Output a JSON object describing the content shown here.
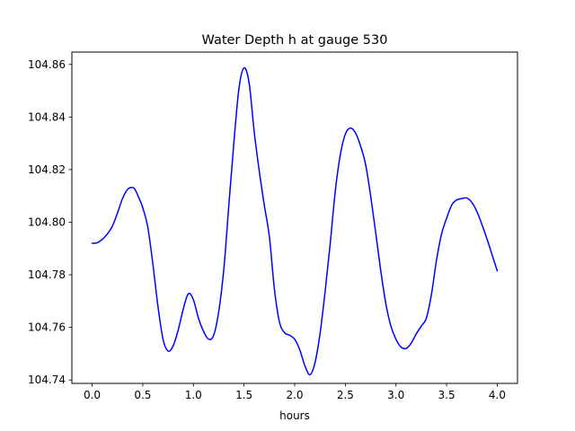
{
  "chart_data": {
    "type": "line",
    "title": "Water Depth h at gauge 530",
    "xlabel": "hours",
    "ylabel": "",
    "xlim": [
      -0.2,
      4.2
    ],
    "ylim": [
      104.7387,
      104.8647
    ],
    "x_ticks": [
      0.0,
      0.5,
      1.0,
      1.5,
      2.0,
      2.5,
      3.0,
      3.5,
      4.0
    ],
    "x_tick_labels": [
      "0.0",
      "0.5",
      "1.0",
      "1.5",
      "2.0",
      "2.5",
      "3.0",
      "3.5",
      "4.0"
    ],
    "y_ticks": [
      104.74,
      104.76,
      104.78,
      104.8,
      104.82,
      104.84,
      104.86
    ],
    "y_tick_labels": [
      "104.74",
      "104.76",
      "104.78",
      "104.80",
      "104.82",
      "104.84",
      "104.86"
    ],
    "grid": false,
    "series": [
      {
        "name": "",
        "color": "#0000ff",
        "x": [
          0.0,
          0.05,
          0.1,
          0.15,
          0.2,
          0.25,
          0.3,
          0.35,
          0.4,
          0.43,
          0.47,
          0.5,
          0.55,
          0.6,
          0.65,
          0.7,
          0.75,
          0.8,
          0.85,
          0.9,
          0.95,
          1.0,
          1.05,
          1.1,
          1.15,
          1.2,
          1.25,
          1.3,
          1.35,
          1.4,
          1.45,
          1.5,
          1.55,
          1.6,
          1.65,
          1.7,
          1.75,
          1.8,
          1.85,
          1.9,
          1.95,
          2.0,
          2.05,
          2.1,
          2.15,
          2.2,
          2.25,
          2.3,
          2.35,
          2.4,
          2.45,
          2.5,
          2.55,
          2.6,
          2.65,
          2.7,
          2.75,
          2.8,
          2.85,
          2.9,
          2.95,
          3.0,
          3.05,
          3.1,
          3.15,
          3.2,
          3.25,
          3.3,
          3.35,
          3.4,
          3.45,
          3.5,
          3.55,
          3.6,
          3.65,
          3.7,
          3.75,
          3.8,
          3.85,
          3.9,
          3.95,
          4.0
        ],
        "y": [
          104.792,
          104.7922,
          104.7935,
          104.7955,
          104.7985,
          104.8035,
          104.809,
          104.8125,
          104.8132,
          104.812,
          104.8085,
          104.8055,
          104.798,
          104.784,
          104.768,
          104.7555,
          104.751,
          104.753,
          104.759,
          104.767,
          104.7728,
          104.7705,
          104.7635,
          104.7585,
          104.7555,
          104.757,
          104.766,
          104.782,
          104.8065,
          104.8305,
          104.851,
          104.8587,
          104.853,
          104.8345,
          104.8195,
          104.8065,
          104.7945,
          104.7745,
          104.762,
          104.758,
          104.757,
          104.7555,
          104.7515,
          104.7455,
          104.742,
          104.7465,
          104.7575,
          104.7735,
          104.7915,
          104.8115,
          104.8255,
          104.8335,
          104.8358,
          104.834,
          104.829,
          104.822,
          104.81,
          104.796,
          104.7815,
          104.769,
          104.7605,
          104.7555,
          104.7525,
          104.752,
          104.754,
          104.7575,
          104.7605,
          104.7635,
          104.7725,
          104.7855,
          104.7955,
          104.8015,
          104.8065,
          104.8085,
          104.809,
          104.8092,
          104.8075,
          104.804,
          104.799,
          104.7935,
          104.7875,
          104.7815
        ]
      }
    ]
  }
}
